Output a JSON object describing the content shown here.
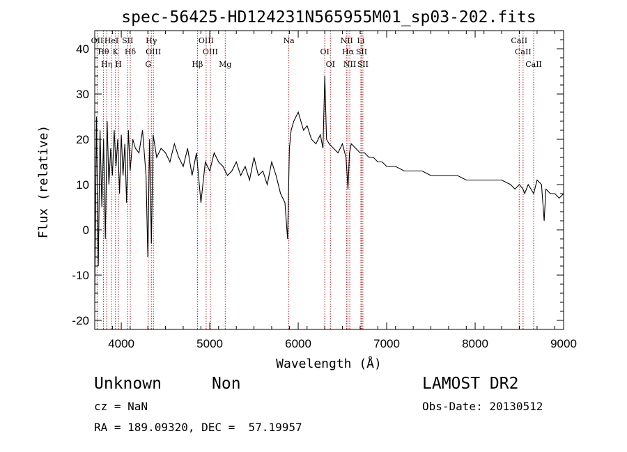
{
  "chart_data": {
    "type": "line",
    "title": "spec-56425-HD124231N565955M01_sp03-202.fits",
    "xlabel": "Wavelength (Å)",
    "ylabel": "Flux (relative)",
    "xlim": [
      3700,
      9000
    ],
    "ylim": [
      -22,
      44
    ],
    "xticks": [
      4000,
      5000,
      6000,
      7000,
      8000,
      9000
    ],
    "yticks": [
      -20,
      -10,
      0,
      10,
      20,
      30,
      40
    ],
    "series": [
      {
        "name": "flux",
        "x": [
          3700,
          3720,
          3740,
          3760,
          3780,
          3800,
          3820,
          3840,
          3860,
          3880,
          3900,
          3920,
          3940,
          3960,
          3980,
          4000,
          4020,
          4040,
          4060,
          4080,
          4100,
          4130,
          4160,
          4200,
          4240,
          4280,
          4300,
          4320,
          4340,
          4360,
          4400,
          4450,
          4500,
          4550,
          4600,
          4650,
          4700,
          4750,
          4800,
          4850,
          4900,
          4950,
          5000,
          5050,
          5100,
          5150,
          5200,
          5250,
          5300,
          5350,
          5400,
          5450,
          5500,
          5550,
          5600,
          5650,
          5700,
          5750,
          5800,
          5850,
          5880,
          5900,
          5920,
          5950,
          6000,
          6030,
          6060,
          6100,
          6150,
          6200,
          6250,
          6280,
          6300,
          6320,
          6350,
          6400,
          6450,
          6500,
          6540,
          6563,
          6580,
          6600,
          6650,
          6700,
          6750,
          6800,
          6850,
          6900,
          6950,
          7000,
          7100,
          7200,
          7300,
          7400,
          7500,
          7600,
          7700,
          7800,
          7900,
          8000,
          8100,
          8200,
          8300,
          8400,
          8450,
          8500,
          8542,
          8560,
          8600,
          8662,
          8700,
          8750,
          8780,
          8800,
          8850,
          8900,
          8950,
          9000
        ],
        "y": [
          -15,
          25,
          -8,
          22,
          5,
          20,
          -2,
          24,
          10,
          18,
          12,
          22,
          14,
          20,
          8,
          21,
          12,
          19,
          6,
          22,
          13,
          20,
          18,
          17,
          22,
          12,
          -6,
          20,
          -3,
          21,
          16,
          18,
          17,
          15,
          19,
          16,
          14,
          18,
          12,
          17,
          6,
          15,
          13,
          17,
          15,
          14,
          12,
          13,
          15,
          12,
          14,
          11,
          16,
          12,
          13,
          10,
          15,
          12,
          8,
          6,
          -2,
          18,
          22,
          24,
          26,
          24,
          22,
          23,
          20,
          19,
          21,
          18,
          34,
          20,
          19,
          18,
          17,
          19,
          16,
          9,
          17,
          19,
          18,
          17,
          17,
          16,
          16,
          15,
          15,
          14,
          14,
          13,
          13,
          13,
          12,
          12,
          12,
          12,
          11,
          11,
          11,
          11,
          11,
          10,
          9,
          10,
          9,
          8,
          10,
          8,
          11,
          10,
          2,
          9,
          8,
          8,
          7,
          8
        ]
      }
    ],
    "lines": [
      {
        "label": "OII",
        "x": 3727
      },
      {
        "label": "Hθ",
        "x": 3798
      },
      {
        "label": "Hη",
        "x": 3835
      },
      {
        "label": "HeI",
        "x": 3889
      },
      {
        "label": "K",
        "x": 3934
      },
      {
        "label": "H",
        "x": 3968
      },
      {
        "label": "SII",
        "x": 4072
      },
      {
        "label": "Hδ",
        "x": 4102
      },
      {
        "label": "G",
        "x": 4305
      },
      {
        "label": "Hγ",
        "x": 4340
      },
      {
        "label": "OIII",
        "x": 4363
      },
      {
        "label": "Hβ",
        "x": 4861
      },
      {
        "label": "OIII",
        "x": 4959
      },
      {
        "label": "OIII",
        "x": 5007
      },
      {
        "label": "Mg",
        "x": 5175
      },
      {
        "label": "Na",
        "x": 5894
      },
      {
        "label": "OI",
        "x": 6300
      },
      {
        "label": "OI",
        "x": 6364
      },
      {
        "label": "NII",
        "x": 6548
      },
      {
        "label": "Hα",
        "x": 6563
      },
      {
        "label": "NII",
        "x": 6583
      },
      {
        "label": "Li",
        "x": 6708
      },
      {
        "label": "SII",
        "x": 6716
      },
      {
        "label": "SII",
        "x": 6731
      },
      {
        "label": "CaII",
        "x": 8498
      },
      {
        "label": "CaII",
        "x": 8542
      },
      {
        "label": "CaII",
        "x": 8662
      }
    ]
  },
  "info": {
    "object_class": "Unknown",
    "object_subclass": "Non",
    "survey": "LAMOST DR2",
    "redshift": "cz = NaN",
    "obs_date": "Obs-Date: 20130512",
    "coords": "RA = 189.09320, DEC =  57.19957"
  }
}
